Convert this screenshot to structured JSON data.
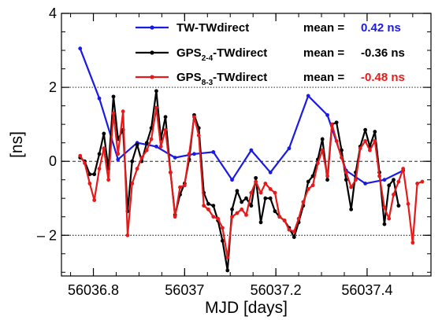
{
  "chart_data": {
    "type": "line",
    "xlabel": "MJD [days]",
    "ylabel": "[ns]",
    "xlim": [
      56036.73,
      56037.54
    ],
    "ylim": [
      -3.1,
      4.0
    ],
    "x_ticks": [
      56036.8,
      56037,
      56037.2,
      56037.4
    ],
    "x_tick_labels": [
      "56036.8",
      "56037",
      "56037.2",
      "56037.4"
    ],
    "y_ticks": [
      -2,
      0,
      2,
      4
    ],
    "y_tick_labels": [
      "– 2",
      "0",
      "2",
      "4"
    ],
    "dotted_gridlines_y": [
      -2,
      2
    ],
    "legend_position": "top-right",
    "series": [
      {
        "name": "TW-TWdirect",
        "label_main": "TW-TWdirect",
        "label_sub": "",
        "label_tail": "",
        "mean_label": "mean =",
        "mean_value": "0.42 ns",
        "color": "#1a1ae6",
        "x": [
          56036.771,
          56036.813,
          56036.854,
          56036.896,
          56036.938,
          56036.979,
          56037.021,
          56037.063,
          56037.104,
          56037.146,
          56037.188,
          56037.229,
          56037.271,
          56037.313,
          56037.354,
          56037.396,
          56037.438,
          56037.479
        ],
        "y": [
          3.05,
          1.7,
          0.05,
          0.5,
          0.4,
          0.1,
          0.2,
          0.25,
          -0.5,
          0.3,
          -0.3,
          0.35,
          1.77,
          1.25,
          -0.25,
          -0.6,
          -0.5,
          -0.25
        ]
      },
      {
        "name": "GPS2-4-TWdirect",
        "label_main": "GPS",
        "label_sub": "2-4",
        "label_tail": "-TWdirect",
        "mean_label": "mean =",
        "mean_value": "-0.36 ns",
        "color": "#000000",
        "x": [
          56036.771,
          56036.781,
          56036.792,
          56036.802,
          56036.813,
          56036.823,
          56036.833,
          56036.844,
          56036.854,
          56036.865,
          56036.875,
          56036.885,
          56036.896,
          56036.906,
          56036.917,
          56036.927,
          56036.938,
          56036.948,
          56036.958,
          56036.969,
          56036.979,
          56036.99,
          56037.0,
          56037.01,
          56037.021,
          56037.031,
          56037.042,
          56037.052,
          56037.063,
          56037.073,
          56037.083,
          56037.094,
          56037.104,
          56037.115,
          56037.125,
          56037.135,
          56037.146,
          56037.156,
          56037.167,
          56037.177,
          56037.188,
          56037.198,
          56037.208,
          56037.219,
          56037.229,
          56037.24,
          56037.25,
          56037.26,
          56037.271,
          56037.281,
          56037.292,
          56037.302,
          56037.313,
          56037.323,
          56037.333,
          56037.344,
          56037.354,
          56037.365,
          56037.375,
          56037.385,
          56037.396,
          56037.406,
          56037.417,
          56037.427,
          56037.438,
          56037.448,
          56037.458,
          56037.469
        ],
        "y": [
          0.1,
          0.0,
          -0.35,
          -0.35,
          0.2,
          0.75,
          -0.2,
          1.75,
          0.6,
          0.85,
          -1.35,
          -0.0,
          0.45,
          0.0,
          0.5,
          0.9,
          1.9,
          0.6,
          1.2,
          -0.3,
          -1.45,
          -0.9,
          -0.6,
          0.05,
          1.25,
          0.9,
          -0.85,
          -1.15,
          -1.2,
          -1.6,
          -2.15,
          -2.95,
          -1.3,
          -0.8,
          -1.1,
          -1.0,
          -1.2,
          -0.45,
          -1.65,
          -1.0,
          -1.0,
          -1.35,
          -1.5,
          -1.6,
          -1.8,
          -2.05,
          -1.65,
          -1.2,
          -0.55,
          -0.4,
          0.05,
          0.6,
          -0.5,
          1.0,
          1.05,
          0.3,
          -0.5,
          -1.3,
          -0.3,
          0.4,
          0.85,
          0.4,
          0.8,
          -0.3,
          -1.7,
          -0.65,
          -0.5,
          -1.2
        ]
      },
      {
        "name": "GPS8-3-TWdirect",
        "label_main": "GPS",
        "label_sub": "8-3",
        "label_tail": "-TWdirect",
        "mean_label": "mean =",
        "mean_value": "-0.48 ns",
        "color": "#e61a1a",
        "x": [
          56036.771,
          56036.781,
          56036.792,
          56036.802,
          56036.813,
          56036.823,
          56036.833,
          56036.844,
          56036.854,
          56036.865,
          56036.875,
          56036.885,
          56036.896,
          56036.906,
          56036.917,
          56036.927,
          56036.938,
          56036.948,
          56036.958,
          56036.969,
          56036.979,
          56036.99,
          56037.0,
          56037.01,
          56037.021,
          56037.031,
          56037.042,
          56037.052,
          56037.063,
          56037.073,
          56037.083,
          56037.094,
          56037.104,
          56037.115,
          56037.125,
          56037.135,
          56037.146,
          56037.156,
          56037.167,
          56037.177,
          56037.188,
          56037.198,
          56037.208,
          56037.219,
          56037.229,
          56037.24,
          56037.25,
          56037.26,
          56037.271,
          56037.281,
          56037.292,
          56037.302,
          56037.313,
          56037.323,
          56037.333,
          56037.344,
          56037.354,
          56037.365,
          56037.375,
          56037.385,
          56037.396,
          56037.406,
          56037.417,
          56037.427,
          56037.438,
          56037.448,
          56037.458,
          56037.469,
          56037.479,
          56037.49,
          56037.5,
          56037.51,
          56037.521
        ],
        "y": [
          0.15,
          -0.05,
          -0.6,
          -1.05,
          -0.2,
          0.35,
          -0.5,
          1.3,
          0.2,
          1.35,
          -2.0,
          -0.6,
          -0.2,
          0.1,
          0.3,
          0.6,
          1.45,
          0.4,
          0.85,
          -0.3,
          -1.5,
          -0.7,
          -0.65,
          0.2,
          1.2,
          0.7,
          -1.2,
          -1.3,
          -1.5,
          -1.55,
          -1.8,
          -2.6,
          -1.5,
          -1.4,
          -1.3,
          -1.45,
          -0.85,
          -0.55,
          -0.85,
          -0.6,
          -0.75,
          -0.85,
          -1.5,
          -1.6,
          -1.85,
          -1.9,
          -1.55,
          -1.1,
          -0.75,
          -0.65,
          -0.05,
          0.3,
          -0.4,
          1.0,
          0.55,
          0.1,
          -0.3,
          -0.7,
          -0.5,
          0.35,
          0.55,
          0.3,
          0.55,
          -0.4,
          -1.25,
          -1.55,
          -0.9,
          -0.55,
          -0.2,
          -1.15,
          -2.2,
          -0.6,
          -0.55
        ]
      }
    ]
  }
}
